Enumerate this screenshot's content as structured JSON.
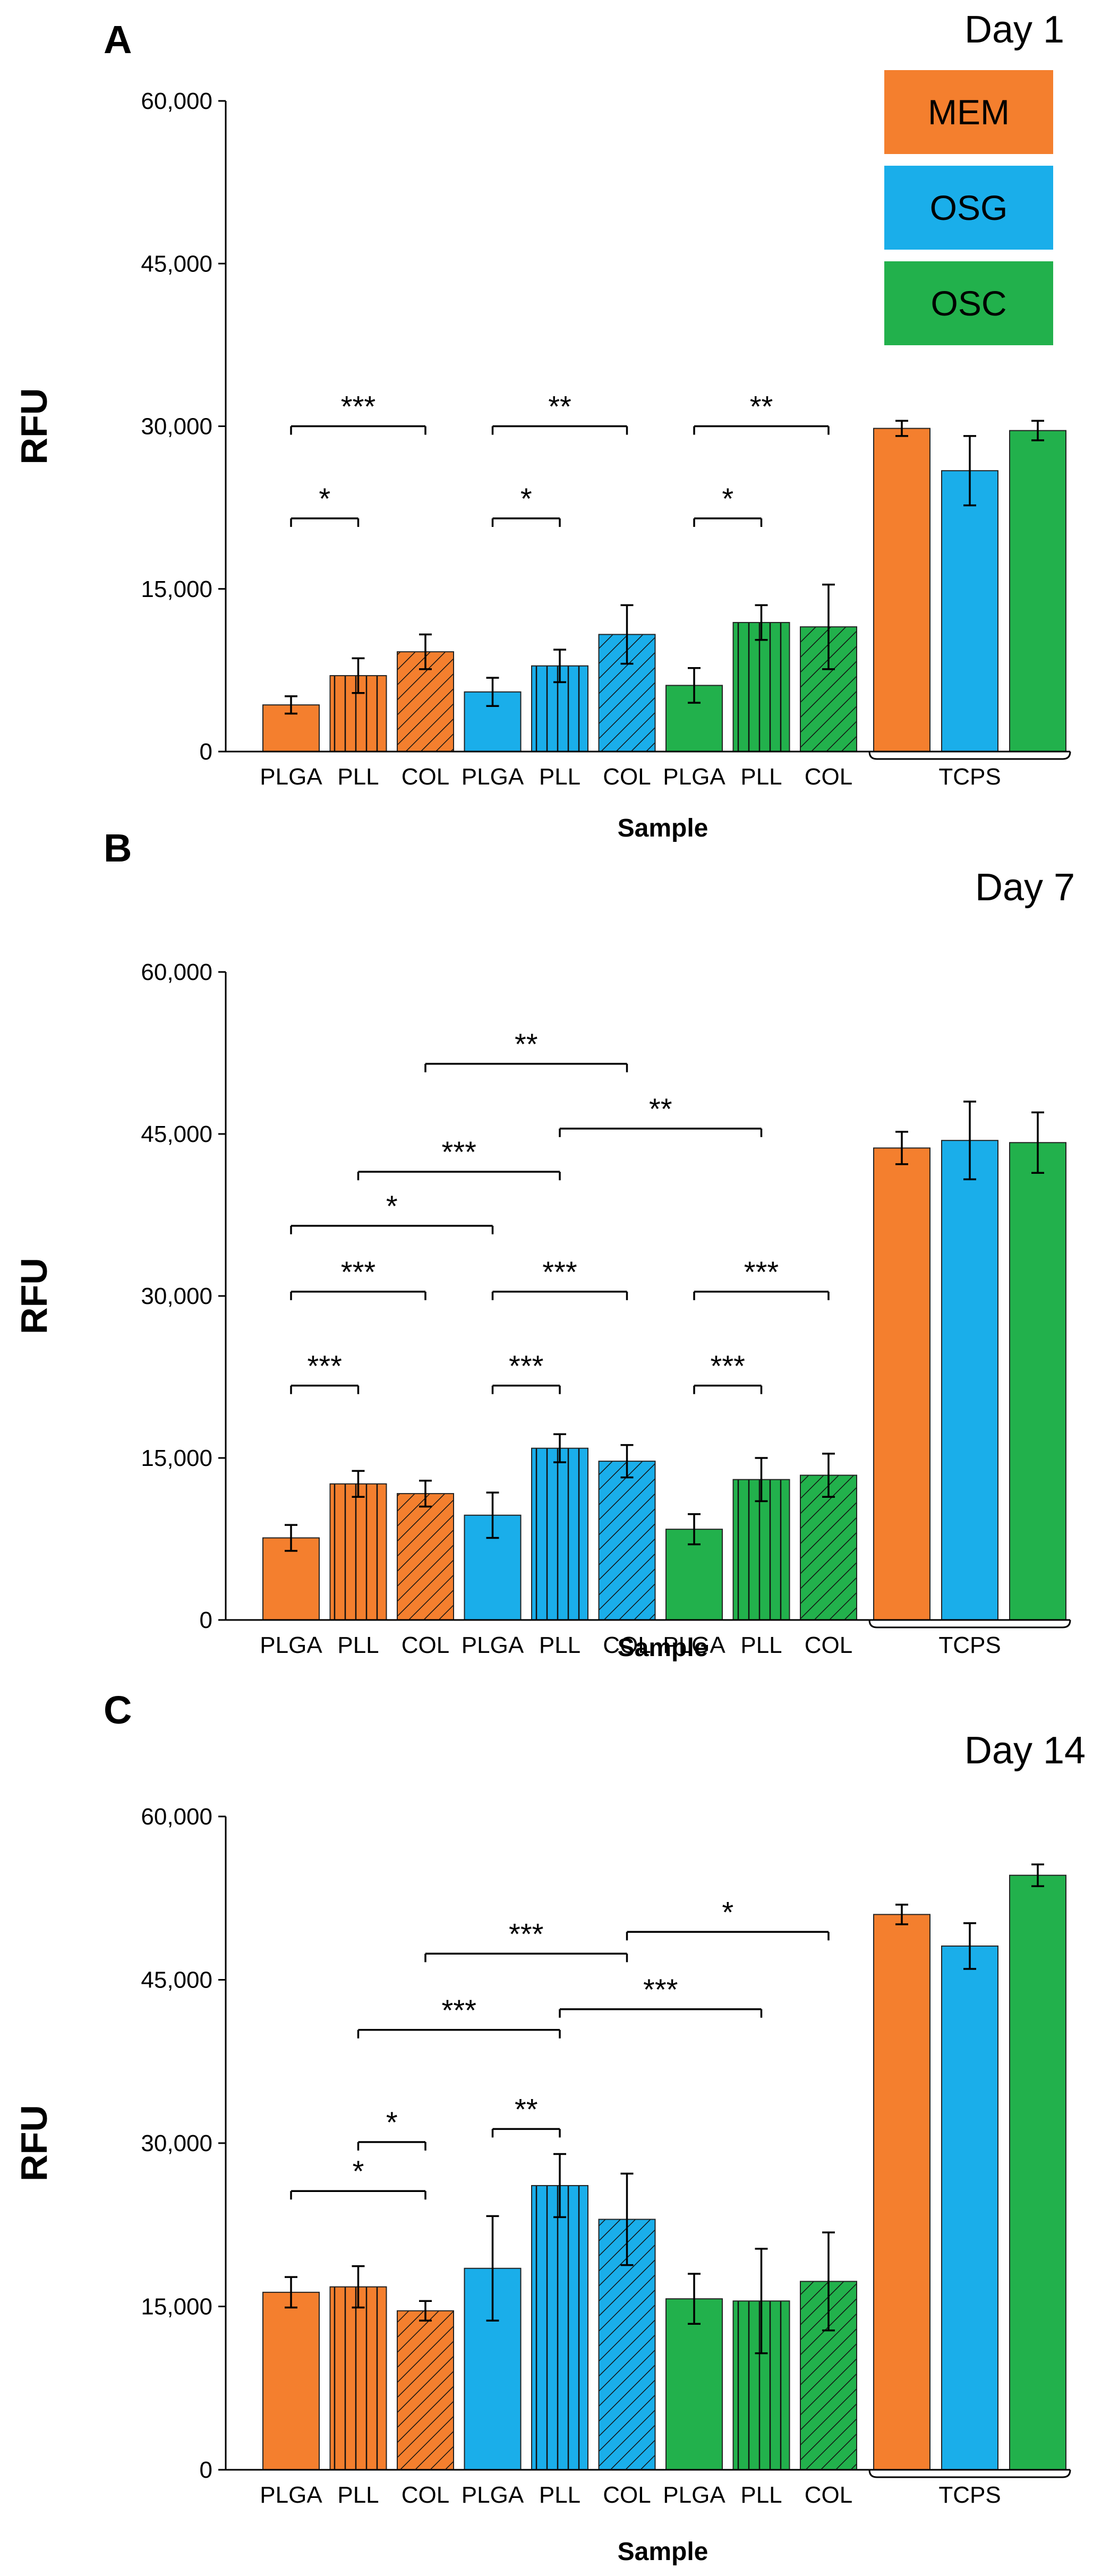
{
  "colors": {
    "MEM": "#F47F2E",
    "OSG": "#1AAEEA",
    "OSC": "#22B14C"
  },
  "chart_data": [
    {
      "type": "bar",
      "panel_label": "A",
      "title": "Day 1",
      "xlabel": "Sample",
      "ylabel": "RFU",
      "ylim": [
        0,
        60000
      ],
      "yticks": [
        0,
        15000,
        30000,
        45000,
        60000
      ],
      "ytick_labels": [
        "0",
        "15,000",
        "30,000",
        "45,000",
        "60,000"
      ],
      "group_label": "TCPS",
      "legend": [
        "MEM",
        "OSG",
        "OSC"
      ],
      "bars": [
        {
          "label": "PLGA",
          "medium": "MEM",
          "pattern": "solid",
          "value": 4300,
          "error": 800
        },
        {
          "label": "PLL",
          "medium": "MEM",
          "pattern": "vertical",
          "value": 7000,
          "error": 1600
        },
        {
          "label": "COL",
          "medium": "MEM",
          "pattern": "diagonal",
          "value": 9200,
          "error": 1600
        },
        {
          "label": "PLGA",
          "medium": "OSG",
          "pattern": "solid",
          "value": 5500,
          "error": 1300
        },
        {
          "label": "PLL",
          "medium": "OSG",
          "pattern": "vertical",
          "value": 7900,
          "error": 1500
        },
        {
          "label": "COL",
          "medium": "OSG",
          "pattern": "diagonal",
          "value": 10800,
          "error": 2700
        },
        {
          "label": "PLGA",
          "medium": "OSC",
          "pattern": "solid",
          "value": 6100,
          "error": 1600
        },
        {
          "label": "PLL",
          "medium": "OSC",
          "pattern": "vertical",
          "value": 11900,
          "error": 1600
        },
        {
          "label": "COL",
          "medium": "OSC",
          "pattern": "diagonal",
          "value": 11500,
          "error": 3900
        },
        {
          "label": "",
          "medium": "MEM",
          "pattern": "solid",
          "value": 29800,
          "error": 700
        },
        {
          "label": "",
          "medium": "OSG",
          "pattern": "solid",
          "value": 25900,
          "error": 3200
        },
        {
          "label": "",
          "medium": "OSC",
          "pattern": "solid",
          "value": 29600,
          "error": 900
        }
      ],
      "significance": [
        {
          "from": 0,
          "to": 1,
          "y": 21500,
          "label": "*"
        },
        {
          "from": 0,
          "to": 2,
          "y": 30000,
          "label": "***"
        },
        {
          "from": 3,
          "to": 4,
          "y": 21500,
          "label": "*"
        },
        {
          "from": 3,
          "to": 5,
          "y": 30000,
          "label": "**"
        },
        {
          "from": 6,
          "to": 7,
          "y": 21500,
          "label": "*"
        },
        {
          "from": 6,
          "to": 8,
          "y": 30000,
          "label": "**"
        }
      ]
    },
    {
      "type": "bar",
      "panel_label": "B",
      "title": "Day 7",
      "xlabel": "Sample",
      "ylabel": "RFU",
      "ylim": [
        0,
        60000
      ],
      "yticks": [
        0,
        15000,
        30000,
        45000,
        60000
      ],
      "ytick_labels": [
        "0",
        "15,000",
        "30,000",
        "45,000",
        "60,000"
      ],
      "group_label": "TCPS",
      "bars": [
        {
          "label": "PLGA",
          "medium": "MEM",
          "pattern": "solid",
          "value": 7600,
          "error": 1200
        },
        {
          "label": "PLL",
          "medium": "MEM",
          "pattern": "vertical",
          "value": 12600,
          "error": 1200
        },
        {
          "label": "COL",
          "medium": "MEM",
          "pattern": "diagonal",
          "value": 11700,
          "error": 1200
        },
        {
          "label": "PLGA",
          "medium": "OSG",
          "pattern": "solid",
          "value": 9700,
          "error": 2100
        },
        {
          "label": "PLL",
          "medium": "OSG",
          "pattern": "vertical",
          "value": 15900,
          "error": 1300
        },
        {
          "label": "COL",
          "medium": "OSG",
          "pattern": "diagonal",
          "value": 14700,
          "error": 1500
        },
        {
          "label": "PLGA",
          "medium": "OSC",
          "pattern": "solid",
          "value": 8400,
          "error": 1400
        },
        {
          "label": "PLL",
          "medium": "OSC",
          "pattern": "vertical",
          "value": 13000,
          "error": 2000
        },
        {
          "label": "COL",
          "medium": "OSC",
          "pattern": "diagonal",
          "value": 13400,
          "error": 2000
        },
        {
          "label": "",
          "medium": "MEM",
          "pattern": "solid",
          "value": 43700,
          "error": 1500
        },
        {
          "label": "",
          "medium": "OSG",
          "pattern": "solid",
          "value": 44400,
          "error": 3600
        },
        {
          "label": "",
          "medium": "OSC",
          "pattern": "solid",
          "value": 44200,
          "error": 2800
        }
      ],
      "significance": [
        {
          "from": 0,
          "to": 1,
          "y": 21700,
          "label": "***"
        },
        {
          "from": 0,
          "to": 2,
          "y": 30400,
          "label": "***"
        },
        {
          "from": 3,
          "to": 4,
          "y": 21700,
          "label": "***"
        },
        {
          "from": 3,
          "to": 5,
          "y": 30400,
          "label": "***"
        },
        {
          "from": 6,
          "to": 7,
          "y": 21700,
          "label": "***"
        },
        {
          "from": 6,
          "to": 8,
          "y": 30400,
          "label": "***"
        },
        {
          "from": 0,
          "to": 3,
          "y": 36500,
          "label": "*"
        },
        {
          "from": 1,
          "to": 4,
          "y": 41500,
          "label": "***"
        },
        {
          "from": 2,
          "to": 5,
          "y": 51500,
          "label": "**"
        },
        {
          "from": 4,
          "to": 7,
          "y": 45500,
          "label": "**"
        }
      ]
    },
    {
      "type": "bar",
      "panel_label": "C",
      "title": "Day 14",
      "xlabel": "Sample",
      "ylabel": "RFU",
      "ylim": [
        0,
        60000
      ],
      "yticks": [
        0,
        15000,
        30000,
        45000,
        60000
      ],
      "ytick_labels": [
        "0",
        "15,000",
        "30,000",
        "45,000",
        "60,000"
      ],
      "group_label": "TCPS",
      "bars": [
        {
          "label": "PLGA",
          "medium": "MEM",
          "pattern": "solid",
          "value": 16300,
          "error": 1400
        },
        {
          "label": "PLL",
          "medium": "MEM",
          "pattern": "vertical",
          "value": 16800,
          "error": 1900
        },
        {
          "label": "COL",
          "medium": "MEM",
          "pattern": "diagonal",
          "value": 14600,
          "error": 900
        },
        {
          "label": "PLGA",
          "medium": "OSG",
          "pattern": "solid",
          "value": 18500,
          "error": 4800
        },
        {
          "label": "PLL",
          "medium": "OSG",
          "pattern": "vertical",
          "value": 26100,
          "error": 2900
        },
        {
          "label": "COL",
          "medium": "OSG",
          "pattern": "diagonal",
          "value": 23000,
          "error": 4200
        },
        {
          "label": "PLGA",
          "medium": "OSC",
          "pattern": "solid",
          "value": 15700,
          "error": 2300
        },
        {
          "label": "PLL",
          "medium": "OSC",
          "pattern": "vertical",
          "value": 15500,
          "error": 4800
        },
        {
          "label": "COL",
          "medium": "OSC",
          "pattern": "diagonal",
          "value": 17300,
          "error": 4500
        },
        {
          "label": "",
          "medium": "MEM",
          "pattern": "solid",
          "value": 51000,
          "error": 900
        },
        {
          "label": "",
          "medium": "OSG",
          "pattern": "solid",
          "value": 48100,
          "error": 2100
        },
        {
          "label": "",
          "medium": "OSC",
          "pattern": "solid",
          "value": 54600,
          "error": 1000
        }
      ],
      "significance": [
        {
          "from": 0,
          "to": 2,
          "y": 25600,
          "label": "*"
        },
        {
          "from": 1,
          "to": 2,
          "y": 30100,
          "label": "*"
        },
        {
          "from": 3,
          "to": 4,
          "y": 31300,
          "label": "**"
        },
        {
          "from": 1,
          "to": 4,
          "y": 40400,
          "label": "***"
        },
        {
          "from": 2,
          "to": 5,
          "y": 47400,
          "label": "***"
        },
        {
          "from": 4,
          "to": 7,
          "y": 42300,
          "label": "***"
        },
        {
          "from": 5,
          "to": 8,
          "y": 49400,
          "label": "*"
        }
      ]
    }
  ]
}
